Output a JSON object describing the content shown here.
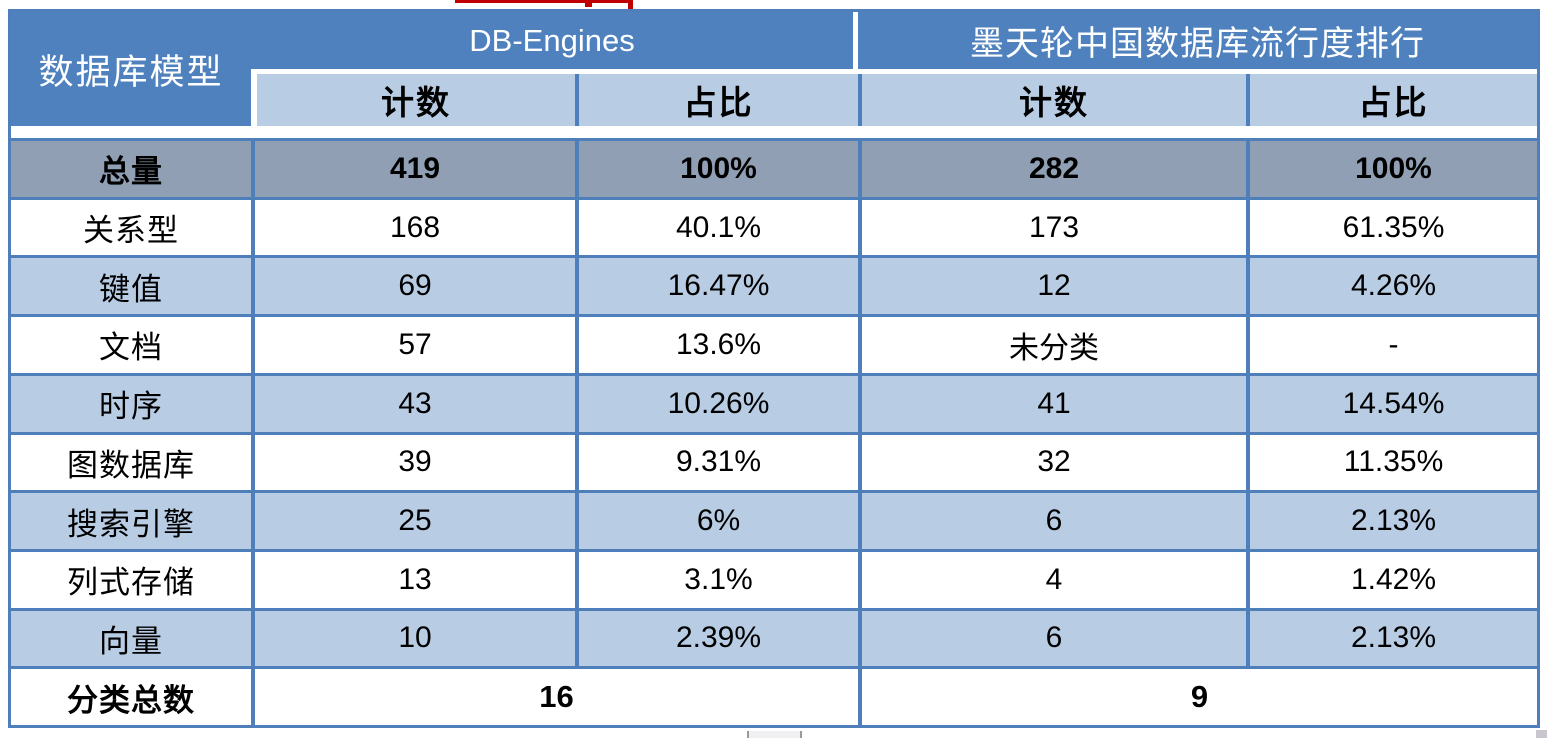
{
  "colors": {
    "header-blue": "#4e81bd",
    "subheader-blue": "#b8cce4",
    "total-row-gray": "#909fb4",
    "zebra-blue": "#b8cce4",
    "border-blue": "#4e7fba",
    "text-dark": "#000000",
    "text-light": "#ffffff",
    "annotation-red": "#c00000",
    "scrollbar-gray": "#f0eff2"
  },
  "chart_data": {
    "type": "table",
    "corner_header": "数据库模型",
    "sections": [
      {
        "title": "DB-Engines",
        "columns": [
          "计数",
          "占比"
        ]
      },
      {
        "title": "墨天轮中国数据库流行度排行",
        "columns": [
          "计数",
          "占比"
        ]
      }
    ],
    "rows": [
      {
        "label": "总量",
        "values": [
          "419",
          "100%",
          "282",
          "100%"
        ]
      },
      {
        "label": "关系型",
        "values": [
          "168",
          "40.1%",
          "173",
          "61.35%"
        ]
      },
      {
        "label": "键值",
        "values": [
          "69",
          "16.47%",
          "12",
          "4.26%"
        ]
      },
      {
        "label": "文档",
        "values": [
          "57",
          "13.6%",
          "未分类",
          "-"
        ]
      },
      {
        "label": "时序",
        "values": [
          "43",
          "10.26%",
          "41",
          "14.54%"
        ]
      },
      {
        "label": "图数据库",
        "values": [
          "39",
          "9.31%",
          "32",
          "11.35%"
        ]
      },
      {
        "label": "搜索引擎",
        "values": [
          "25",
          "6%",
          "6",
          "2.13%"
        ]
      },
      {
        "label": "列式存储",
        "values": [
          "13",
          "3.1%",
          "4",
          "1.42%"
        ]
      },
      {
        "label": "向量",
        "values": [
          "10",
          "2.39%",
          "6",
          "2.13%"
        ]
      }
    ],
    "footer": {
      "label": "分类总数",
      "values": [
        "16",
        "9"
      ]
    }
  }
}
